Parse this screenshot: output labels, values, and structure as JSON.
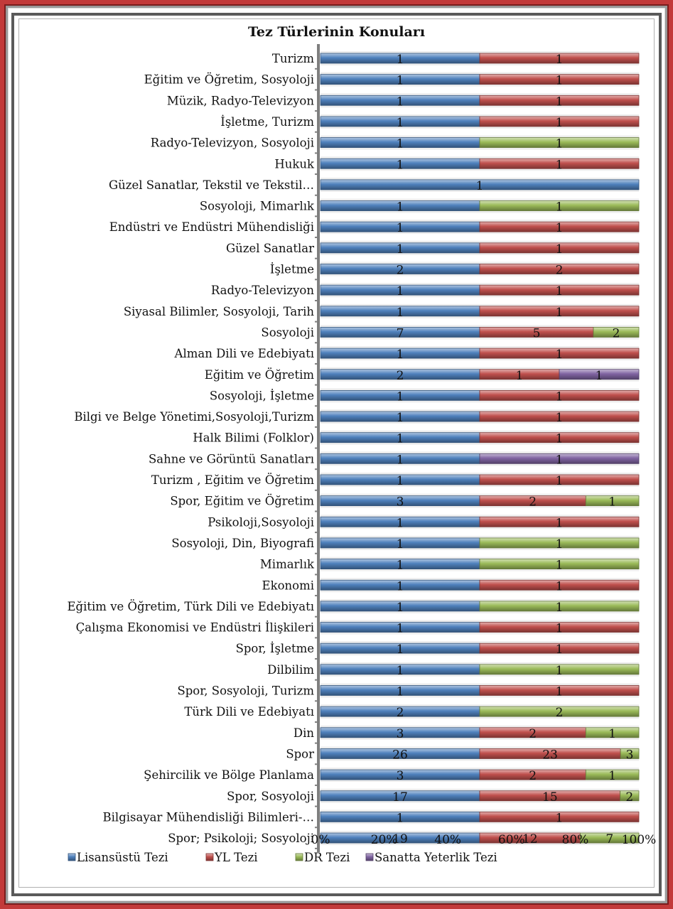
{
  "chart_data": {
    "type": "bar",
    "orientation": "horizontal",
    "stacked": "percent",
    "title": "Tez Türlerinin Konuları",
    "categories": [
      "Turizm",
      "Eğitim ve Öğretim, Sosyoloji",
      "Müzik,  Radyo-Televizyon",
      "İşletme, Turizm",
      "Radyo-Televizyon, Sosyoloji",
      "Hukuk",
      "Güzel Sanatlar, Tekstil ve Tekstil…",
      "Sosyoloji, Mimarlık",
      "Endüstri ve Endüstri Mühendisliği",
      "Güzel Sanatlar",
      "İşletme",
      "Radyo-Televizyon",
      "Siyasal Bilimler, Sosyoloji, Tarih",
      "Sosyoloji",
      "Alman Dili ve Edebiyatı",
      "Eğitim ve Öğretim",
      "Sosyoloji, İşletme",
      "Bilgi ve Belge Yönetimi,Sosyoloji,Turizm",
      "Halk Bilimi (Folklor)",
      "Sahne ve Görüntü Sanatları",
      "Turizm , Eğitim ve Öğretim",
      "Spor, Eğitim ve Öğretim",
      "Psikoloji,Sosyoloji",
      "Sosyoloji, Din, Biyografi",
      "Mimarlık",
      "Ekonomi",
      "Eğitim ve Öğretim, Türk Dili ve Edebiyatı",
      "Çalışma Ekonomisi ve Endüstri İlişkileri",
      "Spor, İşletme",
      "Dilbilim",
      "Spor, Sosyoloji, Turizm",
      "Türk Dili ve Edebiyatı",
      "Din",
      "Spor",
      "Şehircilik ve Bölge Planlama",
      "Spor, Sosyoloji",
      "Bilgisayar Mühendisliği Bilimleri-…",
      "Spor; Psikoloji; Sosyoloji"
    ],
    "series": [
      {
        "name": "Lisansüstü Tezi",
        "color": "#4f81bd",
        "values": [
          1,
          1,
          1,
          1,
          1,
          1,
          1,
          1,
          1,
          1,
          2,
          1,
          1,
          7,
          1,
          2,
          1,
          1,
          1,
          1,
          1,
          3,
          1,
          1,
          1,
          1,
          1,
          1,
          1,
          1,
          1,
          2,
          3,
          26,
          3,
          17,
          1,
          19
        ]
      },
      {
        "name": "YL Tezi",
        "color": "#c0504d",
        "values": [
          1,
          1,
          1,
          1,
          0,
          1,
          0,
          0,
          1,
          1,
          2,
          1,
          1,
          5,
          1,
          1,
          1,
          1,
          1,
          0,
          1,
          2,
          1,
          0,
          0,
          1,
          0,
          1,
          1,
          0,
          1,
          0,
          2,
          23,
          2,
          15,
          1,
          12
        ]
      },
      {
        "name": "DR Tezi",
        "color": "#9bbb59",
        "values": [
          0,
          0,
          0,
          0,
          1,
          0,
          0,
          1,
          0,
          0,
          0,
          0,
          0,
          2,
          0,
          0,
          0,
          0,
          0,
          0,
          0,
          1,
          0,
          1,
          1,
          0,
          1,
          0,
          0,
          1,
          0,
          2,
          1,
          3,
          1,
          2,
          0,
          7
        ]
      },
      {
        "name": "Sanatta Yeterlik Tezi",
        "color": "#8064a2",
        "values": [
          0,
          0,
          0,
          0,
          0,
          0,
          0,
          0,
          0,
          0,
          0,
          0,
          0,
          0,
          0,
          1,
          0,
          0,
          0,
          1,
          0,
          0,
          0,
          0,
          0,
          0,
          0,
          0,
          0,
          0,
          0,
          0,
          0,
          0,
          0,
          0,
          0,
          0
        ]
      }
    ],
    "x_ticks": [
      "0%",
      "20%",
      "40%",
      "60%",
      "80%",
      "100%"
    ],
    "xlim": [
      0,
      100
    ],
    "grid": false,
    "legend_position": "bottom"
  }
}
